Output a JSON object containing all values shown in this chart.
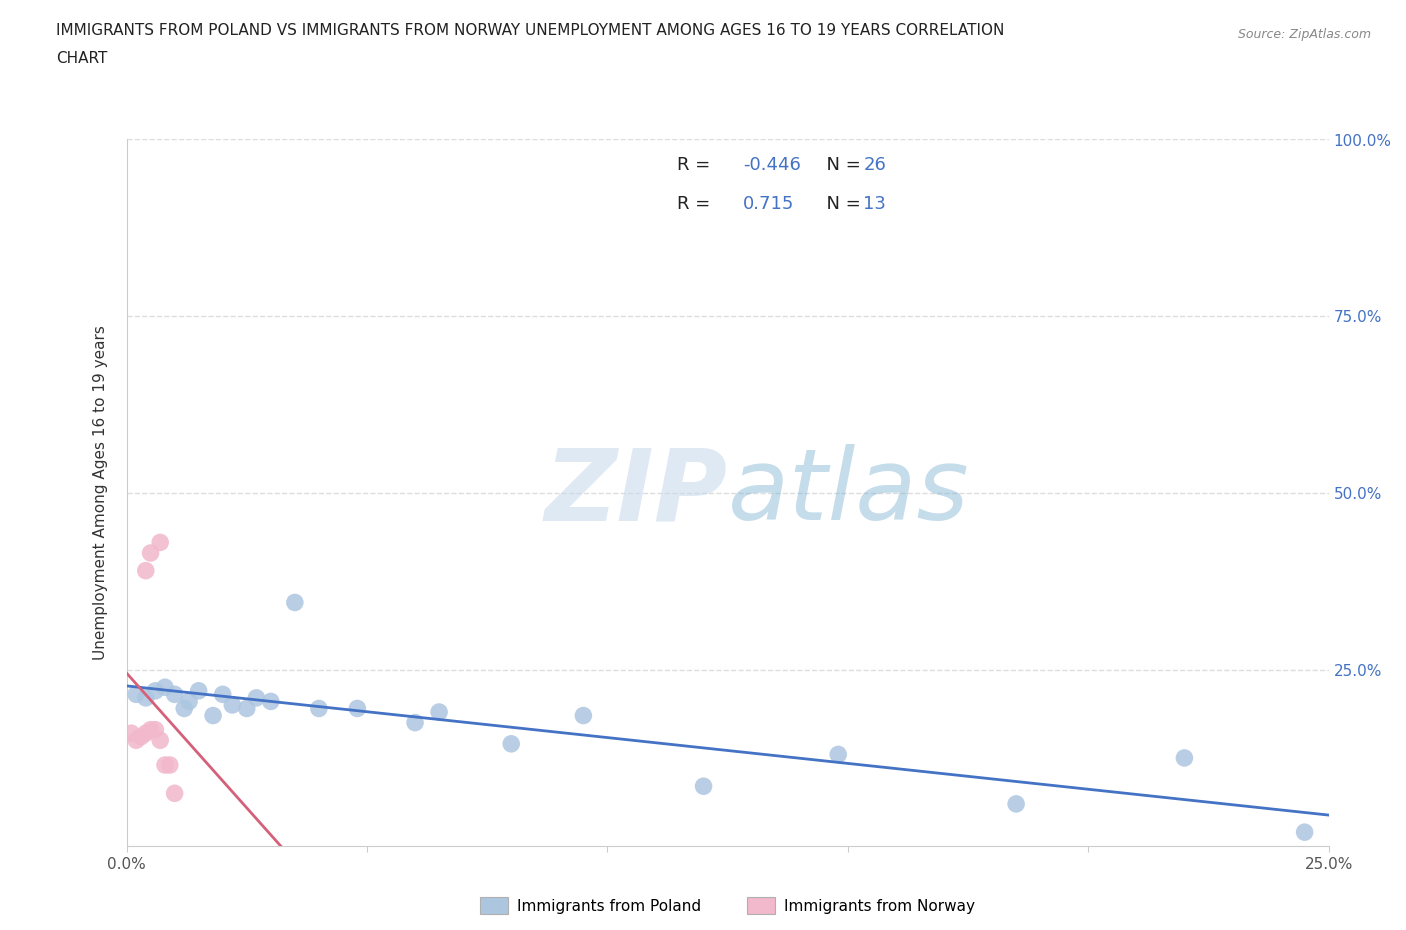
{
  "title_line1": "IMMIGRANTS FROM POLAND VS IMMIGRANTS FROM NORWAY UNEMPLOYMENT AMONG AGES 16 TO 19 YEARS CORRELATION",
  "title_line2": "CHART",
  "source_text": "Source: ZipAtlas.com",
  "ylabel": "Unemployment Among Ages 16 to 19 years",
  "xlim": [
    0.0,
    0.25
  ],
  "ylim": [
    0.0,
    1.0
  ],
  "xticks": [
    0.0,
    0.05,
    0.1,
    0.15,
    0.2,
    0.25
  ],
  "yticks": [
    0.0,
    0.25,
    0.5,
    0.75,
    1.0
  ],
  "poland_color": "#adc6e0",
  "norway_color": "#f2b8cb",
  "poland_line_color": "#4472c4",
  "norway_line_color": "#d4607a",
  "poland_R": "-0.446",
  "poland_N": "26",
  "norway_R": "0.715",
  "norway_N": "13",
  "label_color": "#4472c4",
  "text_color": "#333333",
  "grid_color": "#dddddd",
  "watermark_color": "#c8dff0",
  "poland_legend_label": "Immigrants from Poland",
  "norway_legend_label": "Immigrants from Norway",
  "poland_scatter_x": [
    0.002,
    0.004,
    0.006,
    0.008,
    0.01,
    0.012,
    0.013,
    0.015,
    0.018,
    0.02,
    0.022,
    0.025,
    0.027,
    0.03,
    0.035,
    0.04,
    0.048,
    0.06,
    0.065,
    0.08,
    0.095,
    0.12,
    0.148,
    0.185,
    0.22,
    0.245
  ],
  "poland_scatter_y": [
    0.215,
    0.21,
    0.22,
    0.225,
    0.215,
    0.195,
    0.205,
    0.22,
    0.185,
    0.215,
    0.2,
    0.195,
    0.21,
    0.205,
    0.345,
    0.195,
    0.195,
    0.175,
    0.19,
    0.145,
    0.185,
    0.085,
    0.13,
    0.06,
    0.125,
    0.02
  ],
  "norway_scatter_x": [
    0.001,
    0.002,
    0.003,
    0.004,
    0.004,
    0.005,
    0.005,
    0.006,
    0.007,
    0.007,
    0.008,
    0.009,
    0.01
  ],
  "norway_scatter_y": [
    0.16,
    0.15,
    0.155,
    0.16,
    0.39,
    0.415,
    0.165,
    0.165,
    0.15,
    0.43,
    0.115,
    0.115,
    0.075
  ]
}
